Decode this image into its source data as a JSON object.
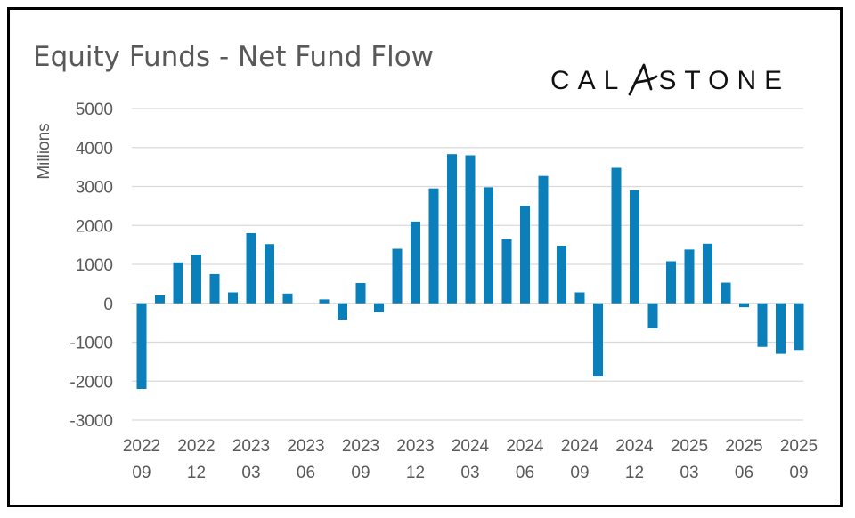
{
  "chart_data": {
    "type": "bar",
    "title": "Equity Funds - Net Fund Flow",
    "ylabel": "Millions",
    "xlabel": "",
    "ylim": [
      -3000,
      5000
    ],
    "yticks": [
      5000,
      4000,
      3000,
      2000,
      1000,
      0,
      -1000,
      -2000,
      -3000
    ],
    "grid": true,
    "bar_color": "#0A7FBA",
    "grid_color": "#D9D9D9",
    "categories": [
      "2022 09",
      "2022 10",
      "2022 11",
      "2022 12",
      "2023 01",
      "2023 02",
      "2023 03",
      "2023 04",
      "2023 05",
      "2023 06",
      "2023 07",
      "2023 08",
      "2023 09",
      "2023 10",
      "2023 11",
      "2023 12",
      "2024 01",
      "2024 02",
      "2024 03",
      "2024 04",
      "2024 05",
      "2024 06",
      "2024 07",
      "2024 08",
      "2024 09",
      "2024 10",
      "2024 11",
      "2024 12",
      "2025 01",
      "2025 02",
      "2025 03",
      "2025 04",
      "2025 05",
      "2025 06",
      "2025 07",
      "2025 08",
      "2025 09"
    ],
    "values": [
      -2200,
      200,
      1050,
      1250,
      750,
      280,
      1800,
      1520,
      250,
      0,
      100,
      -420,
      520,
      -230,
      1400,
      2100,
      2950,
      3830,
      3800,
      2980,
      1650,
      2500,
      3270,
      1480,
      280,
      -1880,
      3480,
      2900,
      -640,
      1080,
      1380,
      1530,
      530,
      -100,
      -1120,
      -1300,
      -1200
    ],
    "x_tick_labels": [
      {
        "year": "2022",
        "month": "09"
      },
      {
        "year": "2022",
        "month": "12"
      },
      {
        "year": "2023",
        "month": "03"
      },
      {
        "year": "2023",
        "month": "06"
      },
      {
        "year": "2023",
        "month": "09"
      },
      {
        "year": "2023",
        "month": "12"
      },
      {
        "year": "2024",
        "month": "03"
      },
      {
        "year": "2024",
        "month": "06"
      },
      {
        "year": "2024",
        "month": "09"
      },
      {
        "year": "2024",
        "month": "12"
      },
      {
        "year": "2025",
        "month": "03"
      },
      {
        "year": "2025",
        "month": "06"
      },
      {
        "year": "2025",
        "month": "09"
      }
    ]
  },
  "brand": {
    "name": "CALASTONE",
    "left": "CAL",
    "right": "STONE",
    "mark_letter": "A"
  }
}
